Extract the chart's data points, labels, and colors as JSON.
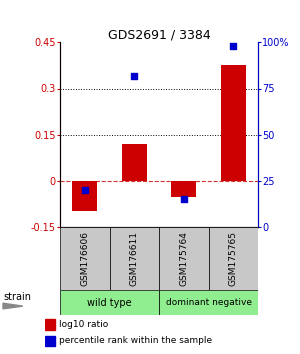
{
  "title": "GDS2691 / 3384",
  "samples": [
    "GSM176606",
    "GSM176611",
    "GSM175764",
    "GSM175765"
  ],
  "log10_ratio": [
    -0.1,
    0.12,
    -0.055,
    0.375
  ],
  "percentile_rank": [
    20.0,
    82.0,
    15.0,
    98.0
  ],
  "ylim_left": [
    -0.15,
    0.45
  ],
  "ylim_right": [
    0,
    100
  ],
  "yticks_left": [
    -0.15,
    0.0,
    0.15,
    0.3,
    0.45
  ],
  "yticks_right": [
    0,
    25,
    50,
    75,
    100
  ],
  "ytick_labels_left": [
    "-0.15",
    "0",
    "0.15",
    "0.3",
    "0.45"
  ],
  "ytick_labels_right": [
    "0",
    "25",
    "50",
    "75",
    "100%"
  ],
  "hlines_dotted": [
    0.15,
    0.3
  ],
  "hline_dashed": 0.0,
  "bar_color": "#CC0000",
  "dot_color": "#0000CC",
  "bar_width": 0.5,
  "dot_size": 25,
  "left_axis_color": "#CC0000",
  "right_axis_color": "#0000CC",
  "strain_label": "strain",
  "legend_red": "log10 ratio",
  "legend_blue": "percentile rank within the sample",
  "sample_box_color": "#C8C8C8",
  "group_color": "#90EE90"
}
